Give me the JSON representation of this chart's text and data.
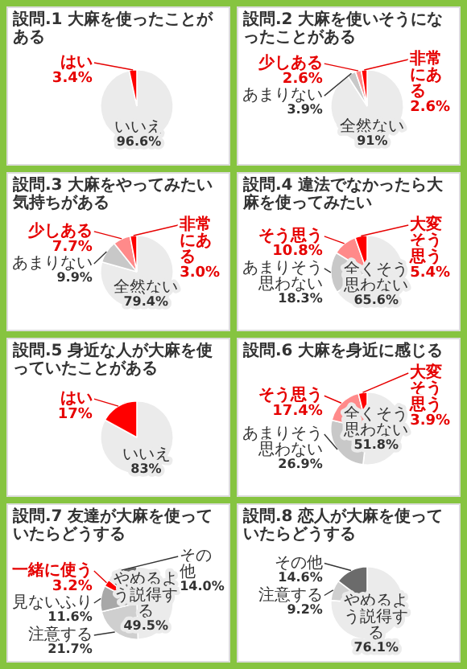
{
  "chart_data": [
    {
      "type": "pie",
      "title": "設問.1 大麻を使ったことがある",
      "categories": [
        "いいえ",
        "はい"
      ],
      "values": [
        96.6,
        3.4
      ],
      "value_labels": [
        "96.6%",
        "3.4%"
      ],
      "colors": [
        "#ebebeb",
        "#ff0000"
      ]
    },
    {
      "type": "pie",
      "title": "設問.2 大麻を使いそうになったことがある",
      "categories": [
        "全然ない",
        "あまりない",
        "少しある",
        "非常にある"
      ],
      "values": [
        91,
        3.9,
        2.6,
        2.6
      ],
      "value_labels": [
        "91%",
        "3.9%",
        "2.6%",
        "2.6%"
      ],
      "colors": [
        "#ebebeb",
        "#c8c8c8",
        "#ff8a8a",
        "#ff0000"
      ]
    },
    {
      "type": "pie",
      "title": "設問.3 大麻をやってみたい気持ちがある",
      "categories": [
        "全然ない",
        "あまりない",
        "少しある",
        "非常にある"
      ],
      "values": [
        79.4,
        9.9,
        7.7,
        3.0
      ],
      "value_labels": [
        "79.4%",
        "9.9%",
        "7.7%",
        "3.0%"
      ],
      "colors": [
        "#ebebeb",
        "#c8c8c8",
        "#ff8a8a",
        "#ff0000"
      ]
    },
    {
      "type": "pie",
      "title": "設問.4 違法でなかったら大麻を使ってみたい",
      "categories": [
        "全くそう思わない",
        "あまりそう思わない",
        "そう思う",
        "大変そう思う"
      ],
      "values": [
        65.6,
        18.3,
        10.8,
        5.4
      ],
      "value_labels": [
        "65.6%",
        "18.3%",
        "10.8%",
        "5.4%"
      ],
      "colors": [
        "#ebebeb",
        "#c8c8c8",
        "#ff8a8a",
        "#ff0000"
      ]
    },
    {
      "type": "pie",
      "title": "設問.5 身近な人が大麻を使っていたことがある",
      "categories": [
        "いいえ",
        "はい"
      ],
      "values": [
        83,
        17
      ],
      "value_labels": [
        "83%",
        "17%"
      ],
      "colors": [
        "#ebebeb",
        "#ff0000"
      ]
    },
    {
      "type": "pie",
      "title": "設問.6 大麻を身近に感じる",
      "categories": [
        "全くそう思わない",
        "あまりそう思わない",
        "そう思う",
        "大変そう思う"
      ],
      "values": [
        51.8,
        26.9,
        17.4,
        3.9
      ],
      "value_labels": [
        "51.8%",
        "26.9%",
        "17.4%",
        "3.9%"
      ],
      "colors": [
        "#ebebeb",
        "#c8c8c8",
        "#ff8a8a",
        "#ff0000"
      ]
    },
    {
      "type": "pie",
      "title": "設問.7 友達が大麻を使っていたらどうする",
      "categories": [
        "やめるよう説得する",
        "注意する",
        "見ないふり",
        "一緒に使う",
        "その他"
      ],
      "values": [
        49.5,
        21.7,
        11.6,
        3.2,
        14.0
      ],
      "value_labels": [
        "49.5%",
        "21.7%",
        "11.6%",
        "3.2%",
        "14.0%"
      ],
      "colors": [
        "#ebebeb",
        "#cfcfcf",
        "#a8a8a8",
        "#ff0000",
        "#6b6b6b"
      ]
    },
    {
      "type": "pie",
      "title": "設問.8 恋人が大麻を使っていたらどうする",
      "categories": [
        "やめるよう説得する",
        "注意する",
        "その他"
      ],
      "values": [
        76.1,
        9.2,
        14.6
      ],
      "value_labels": [
        "76.1%",
        "9.2%",
        "14.6%"
      ],
      "colors": [
        "#ebebeb",
        "#cfcfcf",
        "#6b6b6b"
      ]
    }
  ]
}
